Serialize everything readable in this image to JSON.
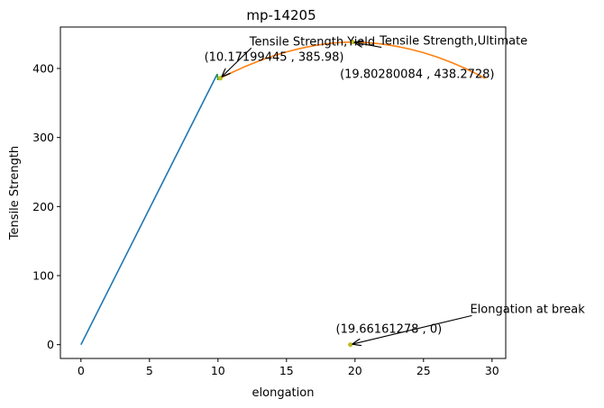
{
  "chart_data": {
    "type": "line",
    "title": "mp-14205",
    "xlabel": "elongation",
    "ylabel": "Tensile Strength",
    "xlim": [
      -1.5,
      31
    ],
    "ylim": [
      -20,
      460
    ],
    "xticks": [
      0,
      5,
      10,
      15,
      20,
      25,
      30
    ],
    "yticks": [
      0,
      100,
      200,
      300,
      400
    ],
    "grid": false,
    "series": [
      {
        "color": "#1f77b4",
        "x": [
          0,
          9.95
        ],
        "y": [
          0,
          392
        ]
      },
      {
        "color": "#ff7f0e",
        "x": [
          10.17,
          11,
          12,
          13,
          14,
          15,
          16,
          17,
          18,
          19,
          19.8,
          21,
          22,
          23,
          24,
          25,
          26,
          27,
          28,
          29,
          29.5
        ],
        "y": [
          385.98,
          394,
          403,
          411,
          418,
          424,
          429,
          433,
          436,
          437.8,
          438.27,
          437.3,
          435.3,
          432.2,
          428,
          422.8,
          416.4,
          409,
          400.5,
          391,
          385.5
        ]
      },
      {
        "color": "#2ca02c",
        "x": [
          9.95,
          10.0
        ],
        "y": [
          392,
          383
        ]
      }
    ],
    "points": [
      {
        "x": 10.17199445,
        "y": 385.98,
        "color": "#bcbd22"
      },
      {
        "x": 19.80280084,
        "y": 438.2728,
        "color": "#bcbd22"
      },
      {
        "x": 19.66161278,
        "y": 0,
        "color": "#bcbd22"
      }
    ],
    "annotations": [
      {
        "label": "Tensile Strength,Yield",
        "coord_label": "(10.17199445 , 385.98)",
        "target": [
          10.17199445,
          385.98
        ],
        "text_at": [
          12.3,
          433.5
        ],
        "coord_at": [
          9.0,
          411
        ]
      },
      {
        "label": "Tensile Strength,Ultimate",
        "coord_label": "(19.80280084 , 438.2728)",
        "target": [
          19.80280084,
          438.2728
        ],
        "text_at": [
          21.8,
          434.5
        ],
        "coord_at": [
          18.9,
          386
        ]
      },
      {
        "label": "Elongation at break",
        "coord_label": "(19.66161278 , 0)",
        "target": [
          19.66161278,
          0
        ],
        "text_at": [
          28.4,
          46
        ],
        "coord_at": [
          18.6,
          17
        ]
      }
    ]
  }
}
